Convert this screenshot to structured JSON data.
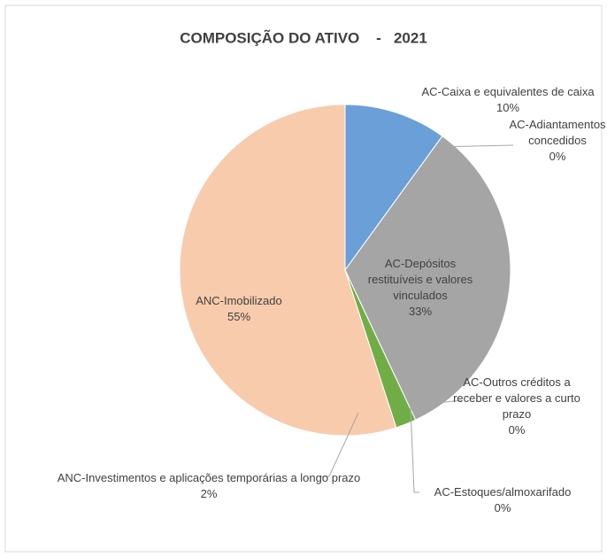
{
  "chart_data": {
    "type": "pie",
    "title": "COMPOSIÇÃO DO ATIVO    -   2021",
    "categories": [
      "AC-Caixa e equivalentes de caixa",
      "AC-Adiantamentos concedidos",
      "AC-Depósitos restituíveis e valores vinculados",
      "AC-Outros créditos a receber e valores a curto prazo",
      "AC-Estoques/almoxarifado",
      "ANC-Investimentos e aplicações temporárias a longo prazo",
      "ANC-Imobilizado"
    ],
    "values": [
      10,
      0,
      33,
      0,
      0,
      2,
      55
    ],
    "value_labels": [
      "10%",
      "0%",
      "33%",
      "0%",
      "0%",
      "2%",
      "55%"
    ],
    "colors": [
      "#6a9fd8",
      "#ed7d31",
      "#a5a5a5",
      "#4472c4",
      "#5b9bd5",
      "#70ad47",
      "#f8cbad"
    ]
  }
}
